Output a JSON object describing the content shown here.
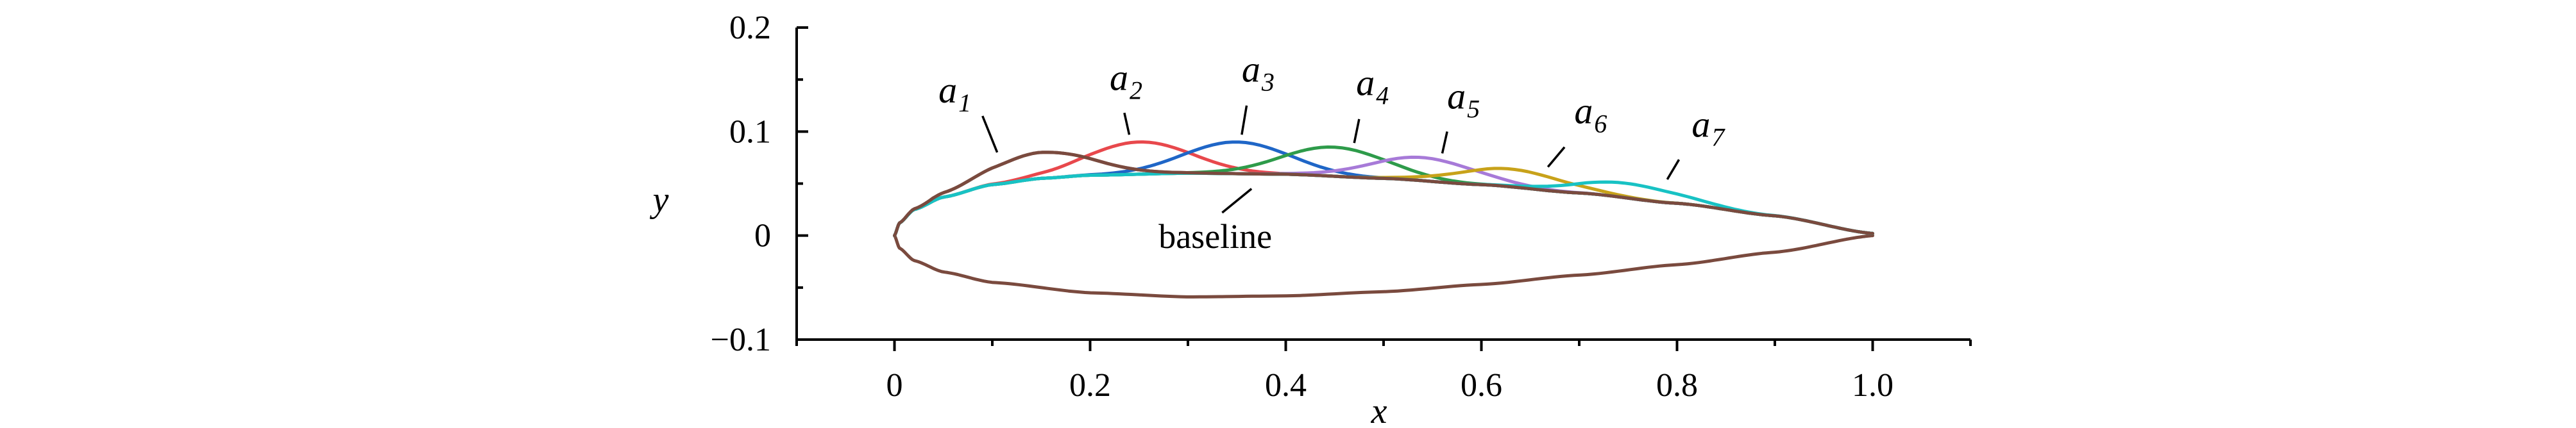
{
  "chart_data": {
    "type": "line",
    "title": "",
    "xlabel": "x",
    "ylabel": "y",
    "xlim": [
      -0.1,
      1.1
    ],
    "ylim": [
      -0.1,
      0.2
    ],
    "x_ticks": [
      0,
      0.2,
      0.4,
      0.6,
      0.8,
      1.0
    ],
    "x_tick_labels": [
      "0",
      "0.2",
      "0.4",
      "0.6",
      "0.8",
      "1.0"
    ],
    "y_ticks": [
      -0.1,
      0,
      0.1,
      0.2
    ],
    "y_tick_labels": [
      "−0.1",
      "0",
      "0.1",
      "0.2"
    ],
    "grid": false,
    "legend": "none",
    "baseline": {
      "label": "baseline",
      "color": "#7a4a3e",
      "upper": [
        [
          0,
          0
        ],
        [
          0.005,
          0.012
        ],
        [
          0.02,
          0.025
        ],
        [
          0.05,
          0.037
        ],
        [
          0.1,
          0.049
        ],
        [
          0.15,
          0.055
        ],
        [
          0.2,
          0.058
        ],
        [
          0.3,
          0.06
        ],
        [
          0.4,
          0.059
        ],
        [
          0.5,
          0.055
        ],
        [
          0.6,
          0.049
        ],
        [
          0.7,
          0.041
        ],
        [
          0.8,
          0.031
        ],
        [
          0.9,
          0.019
        ],
        [
          1.0,
          0.002
        ]
      ],
      "lower": [
        [
          0,
          0
        ],
        [
          0.005,
          -0.012
        ],
        [
          0.02,
          -0.024
        ],
        [
          0.05,
          -0.035
        ],
        [
          0.1,
          -0.045
        ],
        [
          0.2,
          -0.055
        ],
        [
          0.3,
          -0.059
        ],
        [
          0.4,
          -0.058
        ],
        [
          0.5,
          -0.054
        ],
        [
          0.6,
          -0.047
        ],
        [
          0.7,
          -0.038
        ],
        [
          0.8,
          -0.028
        ],
        [
          0.9,
          -0.016
        ],
        [
          1.0,
          0.0
        ]
      ]
    },
    "series": [
      {
        "name": "a1",
        "color": "#7a4a3e",
        "bump_center": 0.15,
        "peak_y": 0.08,
        "annotation": {
          "base": "a",
          "sub": "1"
        }
      },
      {
        "name": "a2",
        "color": "#e8484c",
        "bump_center": 0.25,
        "peak_y": 0.09,
        "annotation": {
          "base": "a",
          "sub": "2"
        }
      },
      {
        "name": "a3",
        "color": "#1f66c7",
        "bump_center": 0.35,
        "peak_y": 0.09,
        "annotation": {
          "base": "a",
          "sub": "3"
        }
      },
      {
        "name": "a4",
        "color": "#2e9b4a",
        "bump_center": 0.45,
        "peak_y": 0.085,
        "annotation": {
          "base": "a",
          "sub": "4"
        }
      },
      {
        "name": "a5",
        "color": "#a77ad8",
        "bump_center": 0.54,
        "peak_y": 0.075,
        "annotation": {
          "base": "a",
          "sub": "5"
        }
      },
      {
        "name": "a6",
        "color": "#c8a21a",
        "bump_center": 0.63,
        "peak_y": 0.064,
        "annotation": {
          "base": "a",
          "sub": "6"
        }
      },
      {
        "name": "a7",
        "color": "#18c2c4",
        "bump_center": 0.75,
        "peak_y": 0.05,
        "annotation": {
          "base": "a",
          "sub": "7"
        }
      }
    ],
    "baseline_line_color": "#18c2c4"
  }
}
